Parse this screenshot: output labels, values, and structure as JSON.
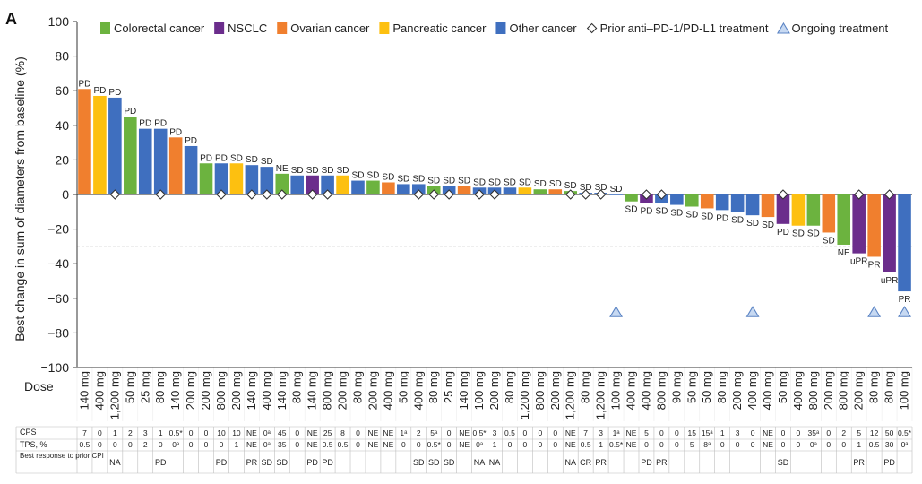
{
  "chart_data": {
    "type": "bar",
    "panel_label": "A",
    "ylabel": "Best change in sum of diameters from baseline (%)",
    "ylim": [
      -100,
      100
    ],
    "yticks": [
      100,
      80,
      60,
      40,
      20,
      0,
      -20,
      -40,
      -60,
      -80,
      -100
    ],
    "reference_lines": [
      20,
      -30
    ],
    "legend": [
      {
        "key": "CRC",
        "label": "Colorectal cancer",
        "color": "#6cb33f"
      },
      {
        "key": "NSCLC",
        "label": "NSCLC",
        "color": "#6b2d8c"
      },
      {
        "key": "OV",
        "label": "Ovarian cancer",
        "color": "#f07f2e"
      },
      {
        "key": "PAN",
        "label": "Pancreatic cancer",
        "color": "#fdc010"
      },
      {
        "key": "OTH",
        "label": "Other cancer",
        "color": "#3f6fbf"
      },
      {
        "key": "prior",
        "label": "Prior anti–PD-1/PD-L1 treatment",
        "marker": "diamond"
      },
      {
        "key": "ongoing",
        "label": "Ongoing treatment",
        "marker": "triangle"
      }
    ],
    "row_labels": {
      "dose": "Dose",
      "cps": "CPS",
      "tps": "TPS, %",
      "best_response": "Best response to prior CPI"
    },
    "bars": [
      {
        "value": 61,
        "type": "OV",
        "label": "PD",
        "dose": "140 mg",
        "cps": "7",
        "tps": "0.5",
        "prior": false
      },
      {
        "value": 57,
        "type": "PAN",
        "label": "PD",
        "dose": "400 mg",
        "cps": "0",
        "tps": "0",
        "prior": false
      },
      {
        "value": 56,
        "type": "OTH",
        "label": "PD",
        "dose": "1,200 mg",
        "cps": "1",
        "tps": "0",
        "prior": true
      },
      {
        "value": 45,
        "type": "CRC",
        "label": "PD",
        "dose": "50 mg",
        "cps": "2",
        "tps": "0",
        "prior": false
      },
      {
        "value": 38,
        "type": "OTH",
        "label": "PD",
        "dose": "25 mg",
        "cps": "3",
        "tps": "2",
        "prior": false
      },
      {
        "value": 38,
        "type": "OTH",
        "label": "PD",
        "dose": "80 mg",
        "cps": "1",
        "tps": "0",
        "prior": true
      },
      {
        "value": 33,
        "type": "OV",
        "label": "PD",
        "dose": "140 mg",
        "cps": "0.5*",
        "tps": "0ᵃ",
        "prior": false
      },
      {
        "value": 28,
        "type": "OTH",
        "label": "PD",
        "dose": "200 mg",
        "cps": "0",
        "tps": "0",
        "prior": false
      },
      {
        "value": 18,
        "type": "CRC",
        "label": "PD",
        "dose": "200 mg",
        "cps": "0",
        "tps": "0",
        "prior": false
      },
      {
        "value": 18,
        "type": "OTH",
        "label": "PD",
        "dose": "800 mg",
        "cps": "10",
        "tps": "0",
        "prior": true
      },
      {
        "value": 18,
        "type": "PAN",
        "label": "SD",
        "dose": "200 mg",
        "cps": "10",
        "tps": "1",
        "prior": false
      },
      {
        "value": 17,
        "type": "OTH",
        "label": "SD",
        "dose": "140 mg",
        "cps": "NE",
        "tps": "NE",
        "prior": true
      },
      {
        "value": 16,
        "type": "OTH",
        "label": "SD",
        "dose": "400 mg",
        "cps": "0ᵃ",
        "tps": "0ᵃ",
        "prior": true
      },
      {
        "value": 12,
        "type": "CRC",
        "label": "NE",
        "dose": "140 mg",
        "cps": "45",
        "tps": "35",
        "prior": true
      },
      {
        "value": 11,
        "type": "OTH",
        "label": "SD",
        "dose": "80 mg",
        "cps": "0",
        "tps": "0",
        "prior": false
      },
      {
        "value": 11,
        "type": "NSCLC",
        "label": "SD",
        "dose": "140 mg",
        "cps": "NE",
        "tps": "NE",
        "prior": true
      },
      {
        "value": 11,
        "type": "OTH",
        "label": "SD",
        "dose": "800 mg",
        "cps": "25",
        "tps": "0.5",
        "prior": true
      },
      {
        "value": 11,
        "type": "PAN",
        "label": "SD",
        "dose": "200 mg",
        "cps": "8",
        "tps": "0.5",
        "prior": false
      },
      {
        "value": 8,
        "type": "OTH",
        "label": "SD",
        "dose": "80 mg",
        "cps": "0",
        "tps": "0",
        "prior": false
      },
      {
        "value": 8,
        "type": "CRC",
        "label": "SD",
        "dose": "200 mg",
        "cps": "NE",
        "tps": "NE",
        "prior": false
      },
      {
        "value": 7,
        "type": "OV",
        "label": "SD",
        "dose": "400 mg",
        "cps": "NE",
        "tps": "NE",
        "prior": false
      },
      {
        "value": 6,
        "type": "OTH",
        "label": "SD",
        "dose": "50 mg",
        "cps": "1ᵃ",
        "tps": "0",
        "prior": false
      },
      {
        "value": 6,
        "type": "OTH",
        "label": "SD",
        "dose": "400 mg",
        "cps": "2",
        "tps": "0",
        "prior": true
      },
      {
        "value": 5,
        "type": "CRC",
        "label": "SD",
        "dose": "80 mg",
        "cps": "5ᵃ",
        "tps": "0.5*",
        "prior": true
      },
      {
        "value": 5,
        "type": "OTH",
        "label": "SD",
        "dose": "25 mg",
        "cps": "0",
        "tps": "0",
        "prior": true
      },
      {
        "value": 5,
        "type": "OV",
        "label": "SD",
        "dose": "140 mg",
        "cps": "NE",
        "tps": "NE",
        "prior": false
      },
      {
        "value": 4,
        "type": "OTH",
        "label": "SD",
        "dose": "100 mg",
        "cps": "0.5*",
        "tps": "0ᵃ",
        "prior": true
      },
      {
        "value": 4,
        "type": "OTH",
        "label": "SD",
        "dose": "200 mg",
        "cps": "3",
        "tps": "1",
        "prior": true
      },
      {
        "value": 4,
        "type": "OTH",
        "label": "SD",
        "dose": "80 mg",
        "cps": "0.5",
        "tps": "0",
        "prior": false
      },
      {
        "value": 4,
        "type": "PAN",
        "label": "SD",
        "dose": "1,200 mg",
        "cps": "0",
        "tps": "0",
        "prior": false
      },
      {
        "value": 3,
        "type": "CRC",
        "label": "SD",
        "dose": "800 mg",
        "cps": "0",
        "tps": "0",
        "prior": false
      },
      {
        "value": 3,
        "type": "OV",
        "label": "SD",
        "dose": "200 mg",
        "cps": "0",
        "tps": "0",
        "prior": false
      },
      {
        "value": 2,
        "type": "CRC",
        "label": "SD",
        "dose": "1,200 mg",
        "cps": "NE",
        "tps": "NE",
        "prior": true
      },
      {
        "value": 1,
        "type": "OTH",
        "label": "SD",
        "dose": "80 mg",
        "cps": "7",
        "tps": "0.5",
        "prior": true
      },
      {
        "value": 1,
        "type": "OTH",
        "label": "SD",
        "dose": "1,200 mg",
        "cps": "3",
        "tps": "1",
        "prior": true
      },
      {
        "value": 0,
        "type": "OTH",
        "label": "SD",
        "dose": "100 mg",
        "cps": "1ᵃ",
        "tps": "0.5*",
        "prior": false,
        "ongoing": true
      },
      {
        "value": -4,
        "type": "CRC",
        "label": "SD",
        "dose": "400 mg",
        "cps": "NE",
        "tps": "NE",
        "prior": false
      },
      {
        "value": -5,
        "type": "NSCLC",
        "label": "PD",
        "dose": "400 mg",
        "cps": "5",
        "tps": "0",
        "prior": true
      },
      {
        "value": -5,
        "type": "OTH",
        "label": "SD",
        "dose": "800 mg",
        "cps": "0",
        "tps": "0",
        "prior": true
      },
      {
        "value": -6,
        "type": "OTH",
        "label": "SD",
        "dose": "90 mg",
        "cps": "0",
        "tps": "0",
        "prior": false
      },
      {
        "value": -7,
        "type": "CRC",
        "label": "SD",
        "dose": "50 mg",
        "cps": "15",
        "tps": "5",
        "prior": false
      },
      {
        "value": -8,
        "type": "OV",
        "label": "SD",
        "dose": "50 mg",
        "cps": "15ᵃ",
        "tps": "8ᵃ",
        "prior": false
      },
      {
        "value": -9,
        "type": "OTH",
        "label": "PD",
        "dose": "80 mg",
        "cps": "1",
        "tps": "0",
        "prior": false
      },
      {
        "value": -10,
        "type": "OTH",
        "label": "SD",
        "dose": "200 mg",
        "cps": "3",
        "tps": "0",
        "prior": false
      },
      {
        "value": -12,
        "type": "OTH",
        "label": "SD",
        "dose": "400 mg",
        "cps": "0",
        "tps": "0",
        "prior": false,
        "ongoing": true
      },
      {
        "value": -13,
        "type": "OV",
        "label": "SD",
        "dose": "400 mg",
        "cps": "NE",
        "tps": "NE",
        "prior": false
      },
      {
        "value": -17,
        "type": "NSCLC",
        "label": "PD",
        "dose": "50 mg",
        "cps": "0",
        "tps": "0",
        "prior": true
      },
      {
        "value": -18,
        "type": "PAN",
        "label": "SD",
        "dose": "400 mg",
        "cps": "0",
        "tps": "0",
        "prior": false
      },
      {
        "value": -18,
        "type": "CRC",
        "label": "SD",
        "dose": "800 mg",
        "cps": "35ᵃ",
        "tps": "0ᵃ",
        "prior": false
      },
      {
        "value": -22,
        "type": "OV",
        "label": "SD",
        "dose": "200 mg",
        "cps": "0",
        "tps": "0",
        "prior": false
      },
      {
        "value": -29,
        "type": "CRC",
        "label": "NE",
        "dose": "800 mg",
        "cps": "2",
        "tps": "0",
        "prior": false
      },
      {
        "value": -34,
        "type": "NSCLC",
        "label": "uPR",
        "dose": "200 mg",
        "cps": "5",
        "tps": "1",
        "prior": true
      },
      {
        "value": -36,
        "type": "OV",
        "label": "PR",
        "dose": "80 mg",
        "cps": "12",
        "tps": "0.5",
        "prior": false,
        "ongoing": true
      },
      {
        "value": -45,
        "type": "NSCLC",
        "label": "uPR",
        "dose": "80 mg",
        "cps": "50",
        "tps": "30",
        "prior": true
      },
      {
        "value": -56,
        "type": "OTH",
        "label": "PR",
        "dose": "100 mg",
        "cps": "0.5*",
        "tps": "0ᵃ",
        "prior": false,
        "ongoing": true
      }
    ],
    "best_response_groups": [
      {
        "start": 2,
        "end": 2,
        "label": "NA"
      },
      {
        "start": 5,
        "end": 5,
        "label": "PD"
      },
      {
        "start": 9,
        "end": 9,
        "label": "PD"
      },
      {
        "start": 11,
        "end": 11,
        "label": "PR"
      },
      {
        "start": 12,
        "end": 12,
        "label": "SD"
      },
      {
        "start": 13,
        "end": 13,
        "label": "SD"
      },
      {
        "start": 15,
        "end": 15,
        "label": "PD"
      },
      {
        "start": 16,
        "end": 16,
        "label": "PD"
      },
      {
        "start": 22,
        "end": 22,
        "label": "SD"
      },
      {
        "start": 23,
        "end": 23,
        "label": "SD"
      },
      {
        "start": 24,
        "end": 24,
        "label": "SD"
      },
      {
        "start": 26,
        "end": 26,
        "label": "NA"
      },
      {
        "start": 27,
        "end": 27,
        "label": "NA"
      },
      {
        "start": 32,
        "end": 32,
        "label": "NA"
      },
      {
        "start": 33,
        "end": 33,
        "label": "CR"
      },
      {
        "start": 34,
        "end": 34,
        "label": "PR"
      },
      {
        "start": 37,
        "end": 37,
        "label": "PD"
      },
      {
        "start": 38,
        "end": 38,
        "label": "PR"
      },
      {
        "start": 46,
        "end": 46,
        "label": "SD"
      },
      {
        "start": 51,
        "end": 51,
        "label": "PR"
      },
      {
        "start": 53,
        "end": 53,
        "label": "PD"
      }
    ]
  }
}
